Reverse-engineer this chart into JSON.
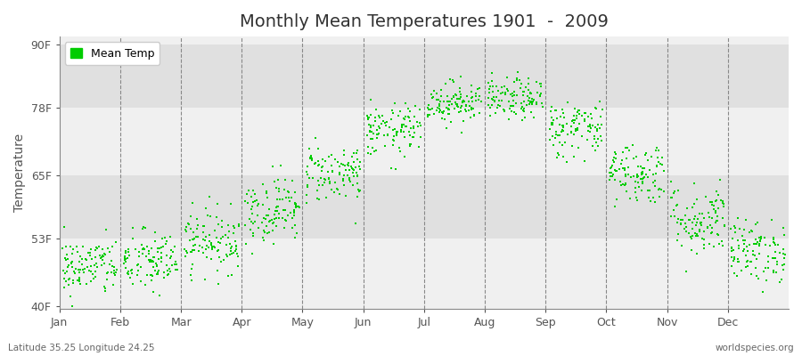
{
  "title": "Monthly Mean Temperatures 1901  -  2009",
  "ylabel": "Temperature",
  "xlabel_labels": [
    "Jan",
    "Feb",
    "Mar",
    "Apr",
    "May",
    "Jun",
    "Jul",
    "Aug",
    "Sep",
    "Oct",
    "Nov",
    "Dec"
  ],
  "ytick_labels": [
    "40F",
    "53F",
    "65F",
    "78F",
    "90F"
  ],
  "ytick_values": [
    40,
    53,
    65,
    78,
    90
  ],
  "ylim": [
    39.5,
    91.5
  ],
  "legend_label": "Mean Temp",
  "dot_color": "#00CC00",
  "background_color_light": "#F0F0F0",
  "background_color_dark": "#E0E0E0",
  "footer_left": "Latitude 35.25 Longitude 24.25",
  "footer_right": "worldspecies.org",
  "monthly_means": [
    47.5,
    48.5,
    52.5,
    58.5,
    65.5,
    73.5,
    79.0,
    79.5,
    74.0,
    65.5,
    56.5,
    50.5
  ],
  "monthly_stds": [
    2.8,
    3.0,
    3.0,
    3.2,
    2.8,
    2.5,
    2.0,
    2.0,
    2.8,
    3.0,
    3.5,
    3.0
  ],
  "n_years": 109,
  "seed": 42,
  "title_fontsize": 14,
  "tick_fontsize": 9,
  "ylabel_fontsize": 10
}
